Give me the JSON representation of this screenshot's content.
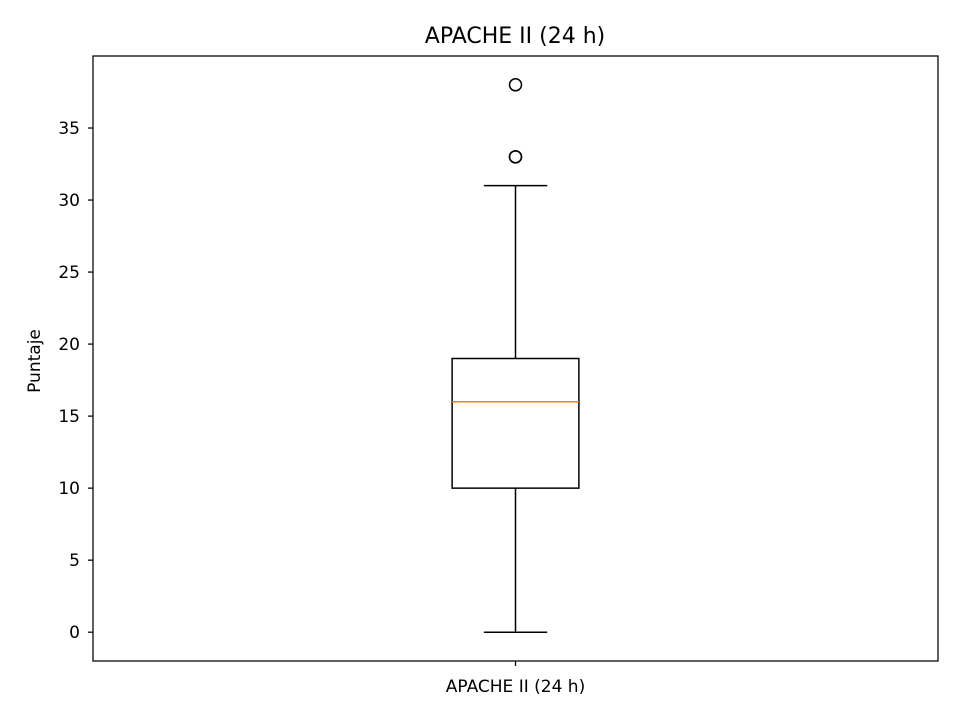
{
  "chart_data": {
    "type": "box",
    "title": "APACHE II (24 h)",
    "xlabel": "",
    "ylabel": "Puntaje",
    "categories": [
      "APACHE II (24 h)"
    ],
    "ylim": [
      -2,
      40
    ],
    "yticks": [
      0,
      5,
      10,
      15,
      20,
      25,
      30,
      35
    ],
    "grid": false,
    "legend": "none",
    "boxes": [
      {
        "category": "APACHE II (24 h)",
        "whisker_low": 0,
        "q1": 10,
        "median": 16,
        "q3": 19,
        "whisker_high": 31,
        "outliers": [
          33,
          33,
          38
        ]
      }
    ],
    "colors": {
      "box": "#000000",
      "median": "#ff7f0e",
      "whisker": "#000000",
      "outlier": "#000000"
    }
  }
}
